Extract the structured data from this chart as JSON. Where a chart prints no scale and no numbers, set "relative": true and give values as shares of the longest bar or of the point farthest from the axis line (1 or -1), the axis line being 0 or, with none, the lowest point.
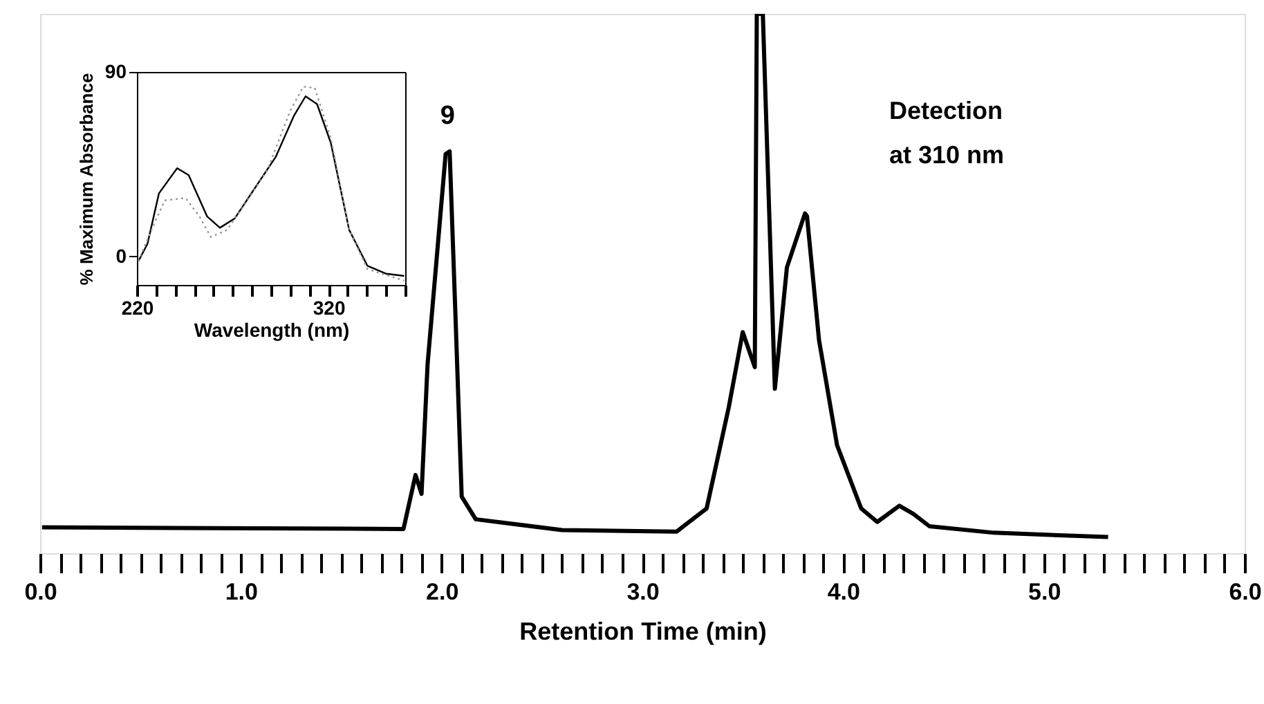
{
  "chart_data": [
    {
      "type": "line",
      "xlabel": "Retention Time (min)",
      "relative": true,
      "xlim": [
        0,
        6
      ],
      "xticks": [
        {
          "value": 0,
          "label": "0.0"
        },
        {
          "value": 0.1,
          "label": null
        },
        {
          "value": 0.2,
          "label": null
        },
        {
          "value": 0.3,
          "label": null
        },
        {
          "value": 0.4,
          "label": null
        },
        {
          "value": 0.5,
          "label": null
        },
        {
          "value": 0.6,
          "label": null
        },
        {
          "value": 0.7,
          "label": null
        },
        {
          "value": 0.8,
          "label": null
        },
        {
          "value": 0.9,
          "label": null
        },
        {
          "value": 1,
          "label": "1.0"
        },
        {
          "value": 1.1,
          "label": null
        },
        {
          "value": 1.2,
          "label": null
        },
        {
          "value": 1.3,
          "label": null
        },
        {
          "value": 1.4,
          "label": null
        },
        {
          "value": 1.5,
          "label": null
        },
        {
          "value": 1.6,
          "label": null
        },
        {
          "value": 1.7,
          "label": null
        },
        {
          "value": 1.8,
          "label": null
        },
        {
          "value": 1.9,
          "label": null
        },
        {
          "value": 2,
          "label": "2.0"
        },
        {
          "value": 2.1,
          "label": null
        },
        {
          "value": 2.2,
          "label": null
        },
        {
          "value": 2.3,
          "label": null
        },
        {
          "value": 2.4,
          "label": null
        },
        {
          "value": 2.5,
          "label": null
        },
        {
          "value": 2.6,
          "label": null
        },
        {
          "value": 2.7,
          "label": null
        },
        {
          "value": 2.8,
          "label": null
        },
        {
          "value": 2.9,
          "label": null
        },
        {
          "value": 3,
          "label": "3.0"
        },
        {
          "value": 3.1,
          "label": null
        },
        {
          "value": 3.2,
          "label": null
        },
        {
          "value": 3.3,
          "label": null
        },
        {
          "value": 3.4,
          "label": null
        },
        {
          "value": 3.5,
          "label": null
        },
        {
          "value": 3.6,
          "label": null
        },
        {
          "value": 3.7,
          "label": null
        },
        {
          "value": 3.8,
          "label": null
        },
        {
          "value": 3.9,
          "label": null
        },
        {
          "value": 4,
          "label": "4.0"
        },
        {
          "value": 4.1,
          "label": null
        },
        {
          "value": 4.2,
          "label": null
        },
        {
          "value": 4.3,
          "label": null
        },
        {
          "value": 4.4,
          "label": null
        },
        {
          "value": 4.5,
          "label": null
        },
        {
          "value": 4.6,
          "label": null
        },
        {
          "value": 4.7,
          "label": null
        },
        {
          "value": 4.8,
          "label": null
        },
        {
          "value": 4.9,
          "label": null
        },
        {
          "value": 5,
          "label": "5.0"
        },
        {
          "value": 5.1,
          "label": null
        },
        {
          "value": 5.2,
          "label": null
        },
        {
          "value": 5.3,
          "label": null
        },
        {
          "value": 5.4,
          "label": null
        },
        {
          "value": 5.5,
          "label": null
        },
        {
          "value": 5.6,
          "label": null
        },
        {
          "value": 5.7,
          "label": null
        },
        {
          "value": 5.8,
          "label": null
        },
        {
          "value": 5.9,
          "label": null
        },
        {
          "value": 6,
          "label": "6.0"
        }
      ],
      "series": [
        {
          "color": "#000000",
          "x": [
            0.01,
            1.81,
            1.87,
            1.9,
            1.93,
            2.02,
            2.04,
            2.07,
            2.1,
            2.17,
            2.6,
            3.17,
            3.32,
            3.43,
            3.5,
            3.56,
            3.57,
            3.6,
            3.66,
            3.72,
            3.81,
            3.82,
            3.88,
            3.97,
            4.09,
            4.17,
            4.28,
            4.35,
            4.43,
            4.75,
            5.32
          ],
          "values": [
            0.048,
            0.045,
            0.145,
            0.11,
            0.35,
            0.74,
            0.745,
            0.43,
            0.105,
            0.063,
            0.043,
            0.04,
            0.083,
            0.27,
            0.41,
            0.345,
            1.0,
            1.0,
            0.305,
            0.53,
            0.63,
            0.625,
            0.395,
            0.2,
            0.083,
            0.058,
            0.088,
            0.073,
            0.05,
            0.038,
            0.03
          ]
        }
      ],
      "annotations": [
        {
          "text": "9",
          "x": 2.03,
          "y": 0.745
        },
        "Detection\nat 310 nm"
      ]
    },
    {
      "type": "line",
      "xlabel": "Wavelength (nm)",
      "ylabel": "% Maximum Absorbance",
      "xlim": [
        220,
        360
      ],
      "ylim": [
        -14,
        90
      ],
      "xticks": [
        220,
        {
          "value": 230,
          "label": null
        },
        {
          "value": 240,
          "label": null
        },
        {
          "value": 250,
          "label": null
        },
        {
          "value": 260,
          "label": null
        },
        {
          "value": 270,
          "label": null
        },
        {
          "value": 280,
          "label": null
        },
        {
          "value": 290,
          "label": null
        },
        {
          "value": 300,
          "label": null
        },
        {
          "value": 310,
          "label": null
        },
        320,
        {
          "value": 330,
          "label": null
        },
        {
          "value": 340,
          "label": null
        },
        {
          "value": 350,
          "label": null
        },
        {
          "value": 360,
          "label": null
        }
      ],
      "yticks": [
        0,
        90
      ],
      "series": [
        {
          "color": "#000000",
          "line_style": "solid",
          "x": [
            220.7,
            225.5,
            231.5,
            241,
            247,
            256.6,
            263.3,
            271,
            280.5,
            292.5,
            302,
            308,
            314,
            321.2,
            330.8,
            340.3,
            349.9,
            359.5
          ],
          "values": [
            -2.5,
            6,
            30.7,
            43,
            39.6,
            19.5,
            13.9,
            18.4,
            31.8,
            48.6,
            68.7,
            78.1,
            74.3,
            55.3,
            12.8,
            -4.7,
            -8.5,
            -9.6
          ]
        },
        {
          "color": "#999999",
          "line_style": "dotted",
          "x": [
            220.7,
            228.6,
            234.6,
            245.4,
            252.6,
            258.6,
            267,
            276,
            288,
            300,
            306.8,
            312.8,
            321.2,
            330.8,
            340.3,
            359.5
          ],
          "values": [
            -2.5,
            15,
            27.3,
            28.4,
            19.5,
            9.4,
            12.8,
            25,
            41.9,
            71,
            82.8,
            82.2,
            57.5,
            12.8,
            -6.3,
            -11.9
          ]
        }
      ]
    }
  ]
}
